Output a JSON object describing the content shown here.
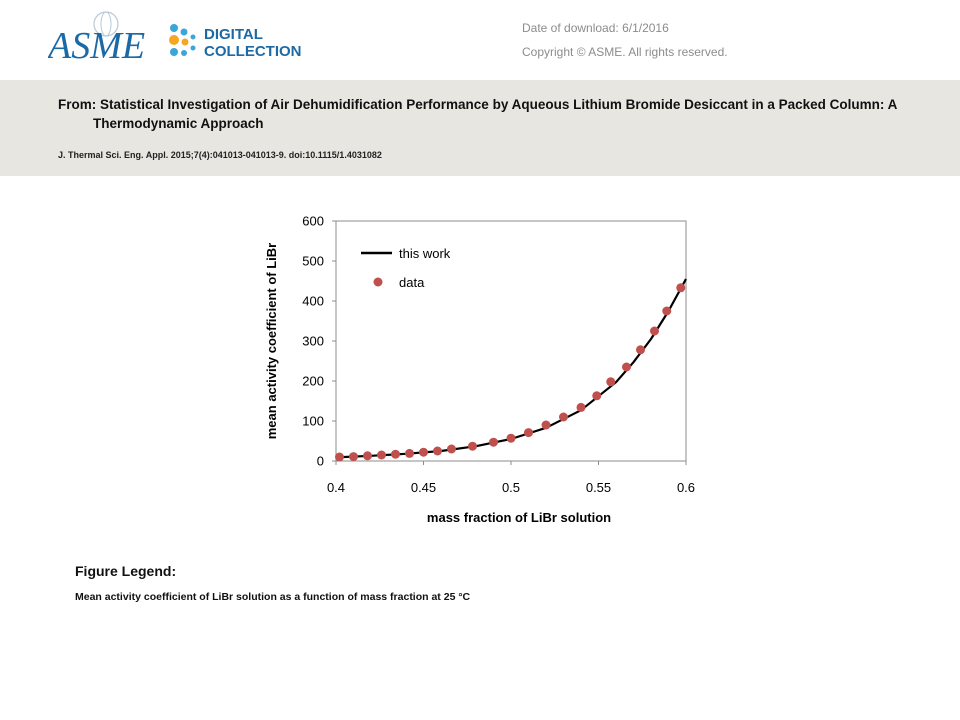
{
  "header": {
    "logo": {
      "brand": "ASME",
      "line1": "DIGITAL",
      "line2": "COLLECTION",
      "colors": {
        "brand": "#1b6aa6",
        "accent": "#f5a623",
        "dots": "#3aa6d9"
      }
    },
    "download_date": "Date of download:  6/1/2016",
    "copyright": "Copyright © ASME. All rights reserved."
  },
  "article": {
    "from": "From: Statistical Investigation of Air Dehumidification Performance by Aqueous Lithium Bromide Desiccant in a Packed Column: A Thermodynamic Approach",
    "citation": "J. Thermal Sci. Eng. Appl. 2015;7(4):041013-041013-9. doi:10.1115/1.4031082"
  },
  "chart_data": {
    "type": "scatter",
    "title": "",
    "xlabel": "mass fraction of LiBr solution",
    "ylabel": "mean activity coefficient of LiBr",
    "xlim": [
      0.4,
      0.6
    ],
    "ylim": [
      0,
      600
    ],
    "xticks": [
      "0.4",
      "0.45",
      "0.5",
      "0.55",
      "0.6"
    ],
    "yticks": [
      "0",
      "100",
      "200",
      "300",
      "400",
      "500",
      "600"
    ],
    "grid": false,
    "legend_position": "top-left",
    "series": [
      {
        "name": "this work",
        "kind": "line",
        "color": "#000000",
        "x": [
          0.4,
          0.42,
          0.44,
          0.46,
          0.48,
          0.5,
          0.52,
          0.54,
          0.56,
          0.57,
          0.58,
          0.59,
          0.6
        ],
        "y": [
          9,
          13,
          18,
          25,
          37,
          55,
          83,
          127,
          197,
          247,
          305,
          375,
          455
        ]
      },
      {
        "name": "data",
        "kind": "points",
        "color": "#c0504d",
        "x": [
          0.402,
          0.41,
          0.418,
          0.426,
          0.434,
          0.442,
          0.45,
          0.458,
          0.466,
          0.478,
          0.49,
          0.5,
          0.51,
          0.52,
          0.53,
          0.54,
          0.549,
          0.557,
          0.566,
          0.574,
          0.582,
          0.589,
          0.597
        ],
        "y": [
          10,
          11,
          13,
          15,
          17,
          19,
          22,
          25,
          30,
          37,
          47,
          57,
          71,
          90,
          110,
          134,
          163,
          198,
          235,
          278,
          325,
          375,
          433
        ]
      }
    ]
  },
  "figure_legend": {
    "title": "Figure Legend:",
    "text": "Mean activity coefficient of LiBr solution as a function of mass fraction at 25 °C"
  }
}
